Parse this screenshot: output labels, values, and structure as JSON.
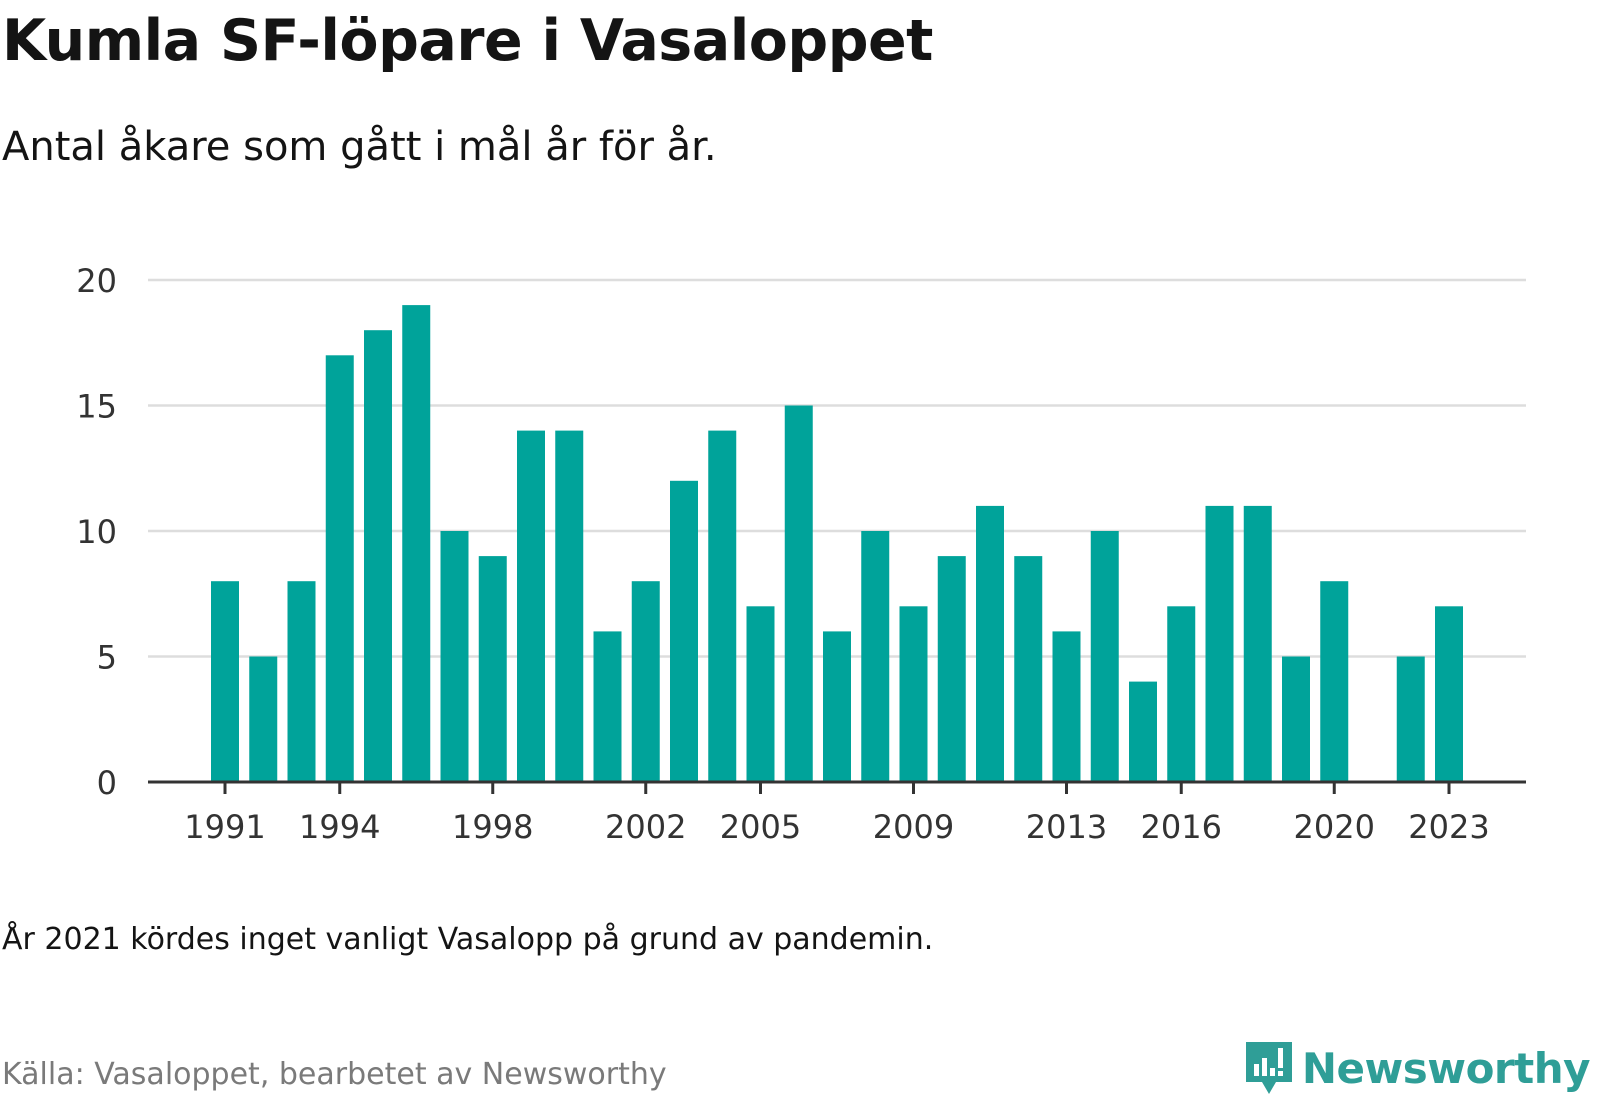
{
  "header": {
    "title": "Kumla SF-löpare i Vasaloppet",
    "subtitle": "Antal åkare som gått i mål år för år."
  },
  "footer": {
    "note": "År 2021 kördes inget vanligt Vasalopp på grund av pandemin.",
    "source": "Källa: Vasaloppet, bearbetet av Newsworthy",
    "brand": "Newsworthy"
  },
  "colors": {
    "bar": "#00a39a",
    "grid": "#dddddd",
    "axis": "#333333",
    "brand": "#2f9e97"
  },
  "icons": {
    "brand_logo": "bar-chart-speech-bubble-icon"
  },
  "chart_data": {
    "type": "bar",
    "title": "Kumla SF-löpare i Vasaloppet",
    "subtitle": "Antal åkare som gått i mål år för år.",
    "x": [
      1991,
      1992,
      1993,
      1994,
      1995,
      1996,
      1997,
      1998,
      1999,
      2000,
      2001,
      2002,
      2003,
      2004,
      2005,
      2006,
      2007,
      2008,
      2009,
      2010,
      2011,
      2012,
      2013,
      2014,
      2015,
      2016,
      2017,
      2018,
      2019,
      2020,
      2021,
      2022,
      2023
    ],
    "values": [
      8,
      5,
      8,
      17,
      18,
      19,
      10,
      9,
      14,
      14,
      6,
      8,
      12,
      14,
      7,
      15,
      6,
      10,
      7,
      9,
      11,
      9,
      6,
      10,
      4,
      7,
      11,
      11,
      5,
      8,
      null,
      5,
      7
    ],
    "x_tick_labels": [
      "1991",
      "1994",
      "1998",
      "2002",
      "2005",
      "2009",
      "2013",
      "2016",
      "2020",
      "2023"
    ],
    "y_ticks": [
      0,
      5,
      10,
      15,
      20
    ],
    "ylim": [
      0,
      20
    ],
    "xlabel": "",
    "ylabel": "",
    "grid": true,
    "legend": "none"
  }
}
